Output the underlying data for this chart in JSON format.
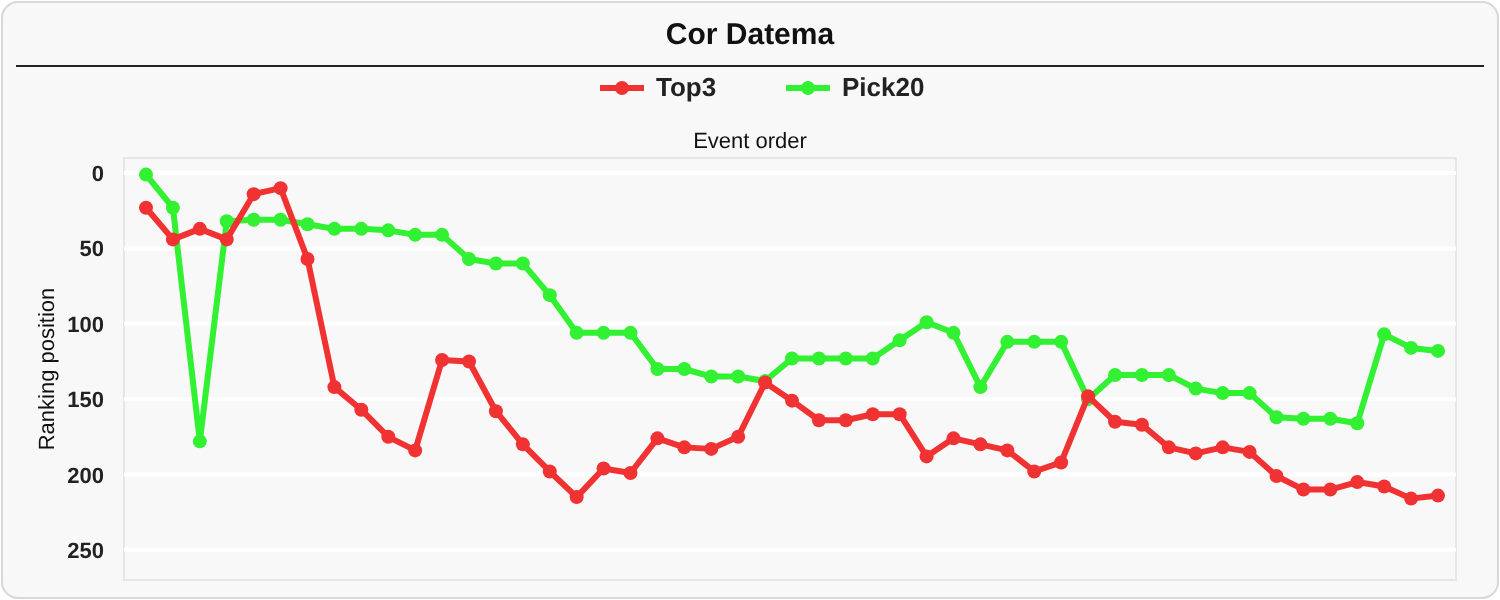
{
  "chart_data": {
    "type": "line",
    "title": "Cor Datema",
    "xlabel": "Event order",
    "ylabel": "Ranking position",
    "categories": [
      null,
      null,
      null,
      null,
      null,
      null,
      null,
      null,
      null,
      null,
      null,
      null,
      null,
      null,
      null,
      null,
      null,
      null,
      null,
      null,
      null,
      null,
      null,
      null,
      null,
      null,
      null,
      null,
      null,
      null,
      null,
      null,
      null,
      null,
      null,
      null,
      null,
      null,
      null,
      null,
      null,
      null,
      null,
      null,
      null,
      null,
      null,
      null,
      null
    ],
    "series": [
      {
        "name": "Top3",
        "color": "#f03232",
        "values": [
          23,
          44,
          37,
          44,
          14,
          10,
          57,
          142,
          157,
          175,
          184,
          124,
          125,
          158,
          180,
          198,
          215,
          196,
          199,
          176,
          182,
          183,
          175,
          139,
          151,
          164,
          164,
          160,
          160,
          188,
          176,
          180,
          184,
          198,
          192,
          148,
          165,
          167,
          182,
          186,
          182,
          185,
          201,
          210,
          210,
          205,
          208,
          216,
          214
        ]
      },
      {
        "name": "Pick20",
        "color": "#32f032",
        "values": [
          1,
          23,
          178,
          32,
          31,
          31,
          34,
          37,
          37,
          38,
          41,
          41,
          57,
          60,
          60,
          81,
          106,
          106,
          106,
          130,
          130,
          135,
          135,
          138,
          123,
          123,
          123,
          123,
          111,
          99,
          106,
          142,
          112,
          112,
          112,
          150,
          134,
          134,
          134,
          143,
          146,
          146,
          162,
          163,
          163,
          166,
          107,
          116,
          118
        ]
      }
    ],
    "ylim": [
      270,
      -10
    ],
    "yticks": [
      0,
      50,
      100,
      150,
      200,
      250
    ],
    "grid": "y",
    "legend": "top",
    "marker": "circle",
    "line_style": "solid",
    "tick_labels": "y"
  }
}
